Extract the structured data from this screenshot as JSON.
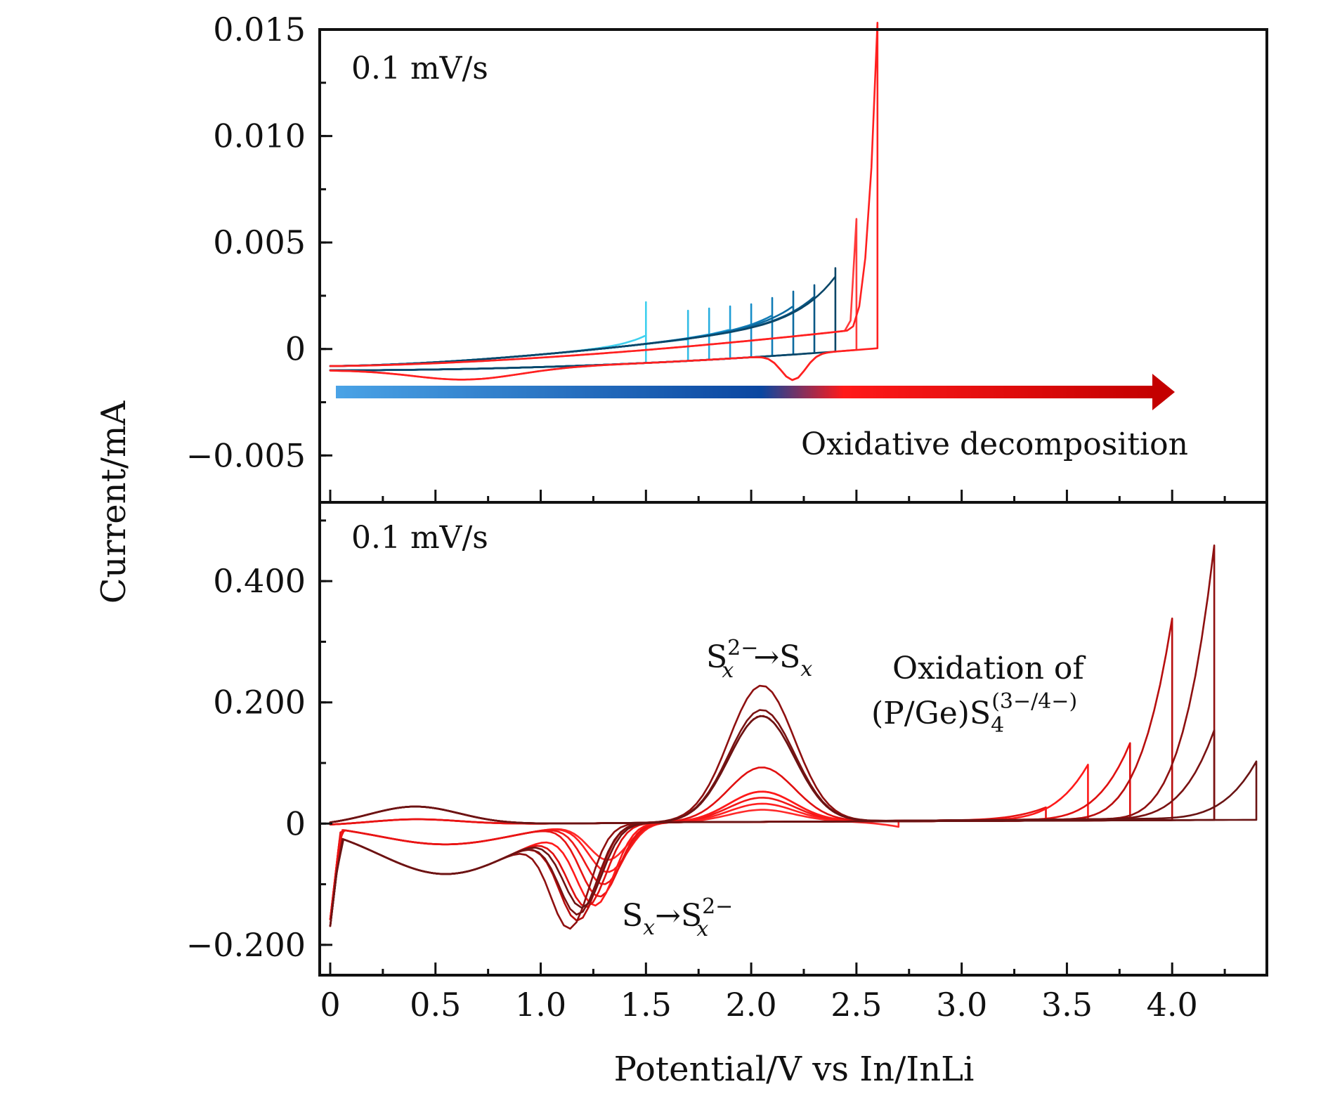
{
  "chart_data": [
    {
      "type": "line",
      "panel": "top",
      "annotation_rate": "0.1 mV/s",
      "arrow_label": "Oxidative decomposition",
      "arrow_colors": [
        "#4aa3e6",
        "#0a46a0",
        "#ff1a1a",
        "#c40000"
      ],
      "xlim": [
        0,
        4.45
      ],
      "ylim": [
        -0.0072,
        0.015
      ],
      "yticks": [
        {
          "v": 0.015,
          "label": "0.015"
        },
        {
          "v": 0.01,
          "label": "0.010"
        },
        {
          "v": 0.005,
          "label": "0.005"
        },
        {
          "v": 0,
          "label": "0"
        },
        {
          "v": -0.005,
          "label": "−0.005"
        }
      ],
      "series": [
        {
          "color": "#3fd0ee",
          "cutoff": 1.5,
          "peak": 0.0022
        },
        {
          "color": "#33bde6",
          "cutoff": 1.7,
          "peak": 0.0018
        },
        {
          "color": "#2aaee0",
          "cutoff": 1.8,
          "peak": 0.0019
        },
        {
          "color": "#1f9dd6",
          "cutoff": 1.9,
          "peak": 0.002
        },
        {
          "color": "#178dc8",
          "cutoff": 2.0,
          "peak": 0.0021
        },
        {
          "color": "#117cb6",
          "cutoff": 2.1,
          "peak": 0.0024
        },
        {
          "color": "#0c6aa0",
          "cutoff": 2.2,
          "peak": 0.0027
        },
        {
          "color": "#0a5886",
          "cutoff": 2.3,
          "peak": 0.003
        },
        {
          "color": "#0a4668",
          "cutoff": 2.4,
          "peak": 0.0038
        },
        {
          "color": "#ff3b3b",
          "cutoff": 2.5,
          "peak": 0.0052
        },
        {
          "color": "#ff2020",
          "cutoff": 2.6,
          "peak": 0.0143
        }
      ]
    },
    {
      "type": "line",
      "panel": "bottom",
      "annotation_rate": "0.1 mV/s",
      "annotations": {
        "oxidation_main": "S",
        "oxidation_sup": "2−",
        "oxidation_sub": "x",
        "oxidation_arrow": "→S",
        "oxidation_sub2": "x",
        "reduction_main": "S",
        "reduction_sub": "x",
        "reduction_arrow": "→S",
        "reduction_sup": "2−",
        "reduction_sub2": "x",
        "label_line1": "Oxidation of",
        "label_line2": "(P/Ge)S",
        "label_line2_sub": "4",
        "label_line2_sup": "(3−/4−)"
      },
      "xlim": [
        -0.05,
        4.45
      ],
      "ylim": [
        -0.25,
        0.53
      ],
      "xlabel": "Potential/V vs In/InLi",
      "ylabel": "Current/mA",
      "xticks": [
        {
          "v": 0,
          "label": "0"
        },
        {
          "v": 0.5,
          "label": "0.5"
        },
        {
          "v": 1.0,
          "label": "1.0"
        },
        {
          "v": 1.5,
          "label": "1.5"
        },
        {
          "v": 2.0,
          "label": "2.0"
        },
        {
          "v": 2.5,
          "label": "2.5"
        },
        {
          "v": 3.0,
          "label": "3.0"
        },
        {
          "v": 3.5,
          "label": "3.5"
        },
        {
          "v": 4.0,
          "label": "4.0"
        }
      ],
      "yticks": [
        {
          "v": 0.4,
          "label": "0.400"
        },
        {
          "v": 0.2,
          "label": "0.200"
        },
        {
          "v": 0,
          "label": "0"
        },
        {
          "v": -0.2,
          "label": "−0.200"
        }
      ],
      "series": [
        {
          "color": "#ff2a2a",
          "vmax": 2.7,
          "peak": 0.01,
          "ox": 0.02,
          "red": -0.06,
          "redPos": 1.32
        },
        {
          "color": "#ff2020",
          "vmax": 2.9,
          "peak": 0.02,
          "ox": 0.03,
          "red": -0.08,
          "redPos": 1.32
        },
        {
          "color": "#f01818",
          "vmax": 3.1,
          "peak": 0.02,
          "ox": 0.04,
          "red": -0.1,
          "redPos": 1.3
        },
        {
          "color": "#e81414",
          "vmax": 3.4,
          "peak": 0.04,
          "ox": 0.05,
          "red": -0.12,
          "redPos": 1.28
        },
        {
          "color": "#ff1a1a",
          "vmax": 3.6,
          "peak": 0.11,
          "ox": 0.05,
          "red": -0.13,
          "redPos": 1.26
        },
        {
          "color": "#e01010",
          "vmax": 3.8,
          "peak": 0.145,
          "ox": 0.09,
          "red": -0.13,
          "redPos": 1.22
        },
        {
          "color": "#b80e0e",
          "vmax": 4.0,
          "peak": 0.35,
          "ox": 0.175,
          "red": -0.15,
          "redPos": 1.18
        },
        {
          "color": "#8e1010",
          "vmax": 4.2,
          "peak": 0.47,
          "ox": 0.225,
          "red": -0.16,
          "redPos": 1.14
        },
        {
          "color": "#7a1212",
          "vmax": 4.2,
          "peak": 0.165,
          "ox": 0.185,
          "red": -0.14,
          "redPos": 1.18
        },
        {
          "color": "#6a1414",
          "vmax": 4.4,
          "peak": 0.113,
          "ox": 0.175,
          "red": -0.13,
          "redPos": 1.2
        }
      ]
    }
  ]
}
